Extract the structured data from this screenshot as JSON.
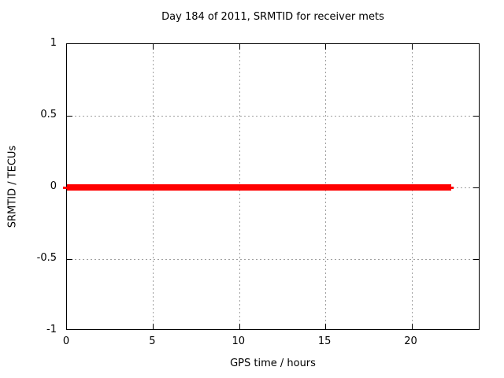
{
  "figure": {
    "title": "Day 184 of 2011, SRMTID for receiver mets",
    "xlabel": "GPS time / hours",
    "ylabel": "SRMTID / TECUs"
  },
  "chart_data": {
    "type": "line",
    "title": "Day 184 of 2011, SRMTID for receiver mets",
    "xlabel": "GPS time / hours",
    "ylabel": "SRMTID / TECUs",
    "xlim": [
      0,
      24
    ],
    "ylim": [
      -1,
      1
    ],
    "x_ticks": [
      0,
      5,
      10,
      15,
      20
    ],
    "x_tick_labels": [
      "0",
      "5",
      "10",
      "15",
      "20"
    ],
    "y_ticks": [
      -1,
      -0.5,
      0,
      0.5,
      1
    ],
    "y_tick_labels": [
      "-1",
      "-0.5",
      "0",
      "0.5",
      "1"
    ],
    "grid": true,
    "grid_color": "#a0a0a0",
    "axis_color": "#000000",
    "background": "#ffffff",
    "legend": "none",
    "series": [
      {
        "name": "SRMTID",
        "color": "#ff0000",
        "style": "thick run of overlapping points over a thin line, constant value",
        "constant_value": 0,
        "x_start": 0,
        "x_end": 22.3,
        "thin_x_start": -0.25,
        "thin_x_end": 22.45,
        "x": [
          0,
          22.3
        ],
        "y": [
          0,
          0
        ]
      }
    ]
  }
}
